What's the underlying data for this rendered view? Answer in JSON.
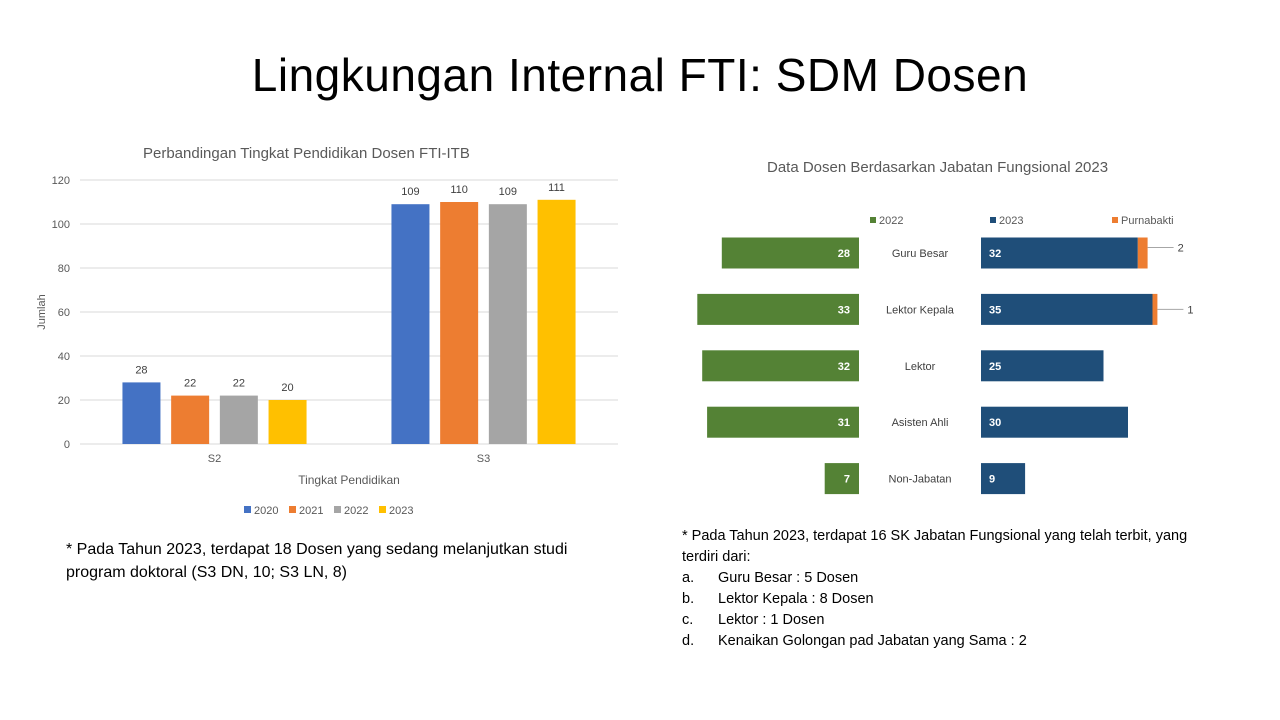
{
  "slide": {
    "title": "Lingkungan Internal FTI: SDM Dosen"
  },
  "chart_data": [
    {
      "type": "bar",
      "title": "Perbandingan Tingkat Pendidikan Dosen FTI-ITB",
      "xlabel": "Tingkat Pendidikan",
      "ylabel": "Jumlah",
      "categories": [
        "S2",
        "S3"
      ],
      "ylim": [
        0,
        120
      ],
      "yticks": [
        0,
        20,
        40,
        60,
        80,
        100,
        120
      ],
      "grid": true,
      "legend_position": "bottom",
      "series": [
        {
          "name": "2020",
          "color": "#4472C4",
          "values": [
            28,
            109
          ]
        },
        {
          "name": "2021",
          "color": "#ED7D31",
          "values": [
            22,
            110
          ]
        },
        {
          "name": "2022",
          "color": "#A5A5A5",
          "values": [
            22,
            109
          ]
        },
        {
          "name": "2023",
          "color": "#FFC000",
          "values": [
            20,
            111
          ]
        }
      ]
    },
    {
      "type": "bar",
      "orientation": "horizontal-butterfly",
      "title": "Data Dosen Berdasarkan Jabatan Fungsional 2023",
      "legend_position": "top",
      "categories": [
        "Guru Besar",
        "Lektor Kepala",
        "Lektor",
        "Asisten Ahli",
        "Non-Jabatan"
      ],
      "series": [
        {
          "name": "2022",
          "color": "#548235",
          "values": [
            28,
            33,
            32,
            31,
            7
          ]
        },
        {
          "name": "2023",
          "color": "#1F4E79",
          "values": [
            32,
            35,
            25,
            30,
            9
          ]
        },
        {
          "name": "Purnabakti",
          "color": "#ED7D31",
          "values": [
            2,
            1,
            null,
            null,
            null
          ]
        }
      ]
    }
  ],
  "notes": {
    "left": "* Pada Tahun 2023, terdapat 18 Dosen yang sedang melanjutkan studi program doktoral (S3 DN, 10; S3 LN, 8)",
    "right_intro": "* Pada Tahun 2023, terdapat 16 SK Jabatan Fungsional yang telah terbit, yang terdiri dari:",
    "right_items": [
      {
        "label": "a.",
        "text": "Guru Besar  : 5 Dosen"
      },
      {
        "label": "b.",
        "text": "Lektor Kepala : 8 Dosen"
      },
      {
        "label": "c.",
        "text": "Lektor : 1 Dosen"
      },
      {
        "label": "d.",
        "text": "Kenaikan Golongan pad Jabatan yang Sama : 2"
      }
    ]
  }
}
